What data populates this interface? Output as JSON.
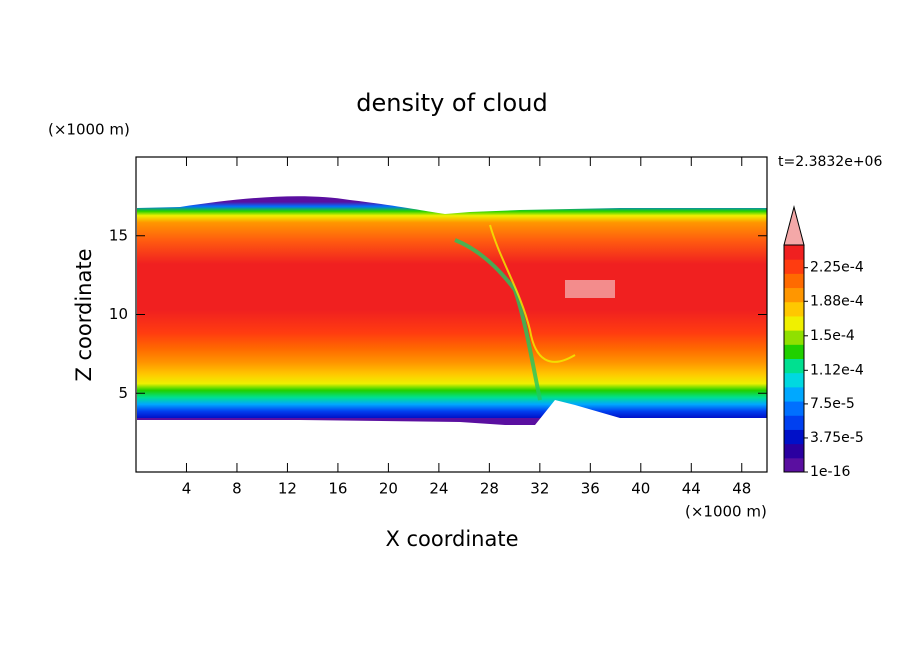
{
  "chart_data": {
    "type": "contour",
    "title": "density of cloud",
    "x_label": "X coordinate",
    "y_label": "Z coordinate",
    "x_unit": "(×1000 m)",
    "y_unit": "(×1000 m)",
    "annotation": "t=2.3832e+06",
    "xlim": [
      0,
      50
    ],
    "xticks": [
      4,
      8,
      12,
      16,
      20,
      24,
      28,
      32,
      36,
      40,
      44,
      48
    ],
    "ylim": [
      0,
      20
    ],
    "yticks": [
      5,
      10,
      15
    ],
    "colorbar": {
      "lim": [
        1e-16,
        0.00025
      ],
      "ticks": [
        1e-16,
        {
          "value": 3.75e-05,
          "label": "3.75e-5"
        },
        {
          "value": 7.5e-05,
          "label": "7.5e-5"
        },
        {
          "value": 0.000112,
          "label": "1.12e-4"
        },
        {
          "value": 0.00015,
          "label": "1.5e-4"
        },
        {
          "value": 0.000188,
          "label": "1.88e-4"
        },
        {
          "value": 0.000225,
          "label": "2.25e-4"
        }
      ],
      "colors": [
        "#5a0fa0",
        "#2a00a0",
        "#0010c8",
        "#0040f0",
        "#0070ff",
        "#00a8ff",
        "#00d8e0",
        "#00e090",
        "#20d000",
        "#90e000",
        "#f0f000",
        "#ffc800",
        "#ff9600",
        "#ff6a00",
        "#ff3c10",
        "#f02020"
      ],
      "over_color": "#f4a8a8"
    }
  }
}
